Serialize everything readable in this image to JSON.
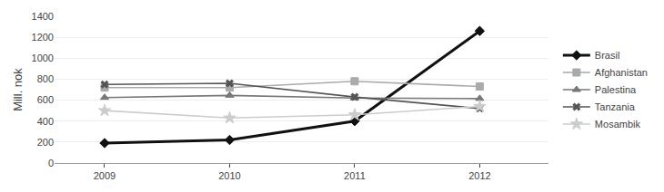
{
  "chart_data": {
    "type": "line",
    "x": [
      2009,
      2010,
      2011,
      2012
    ],
    "series": [
      {
        "name": "Brasil",
        "color": "#111111",
        "marker": "diamond",
        "values": [
          190,
          220,
          400,
          1260
        ]
      },
      {
        "name": "Afghanistan",
        "color": "#aaaaaa",
        "marker": "square",
        "values": [
          720,
          720,
          780,
          730
        ]
      },
      {
        "name": "Palestina",
        "color": "#777777",
        "marker": "triangle-up",
        "values": [
          625,
          645,
          620,
          615
        ]
      },
      {
        "name": "Tanzania",
        "color": "#555555",
        "marker": "x",
        "values": [
          750,
          760,
          630,
          520
        ]
      },
      {
        "name": "Mosambik",
        "color": "#cccccc",
        "marker": "star",
        "values": [
          500,
          430,
          460,
          540
        ]
      }
    ],
    "ylabel": "Mill. nok",
    "xlim": [
      2008.6,
      2012.55
    ],
    "xticks": [
      2009,
      2010,
      2011,
      2012
    ],
    "ylim": [
      0,
      1400
    ],
    "yticks": [
      0,
      200,
      400,
      600,
      800,
      1000,
      1200,
      1400
    ],
    "grid": true,
    "legend": "right"
  }
}
